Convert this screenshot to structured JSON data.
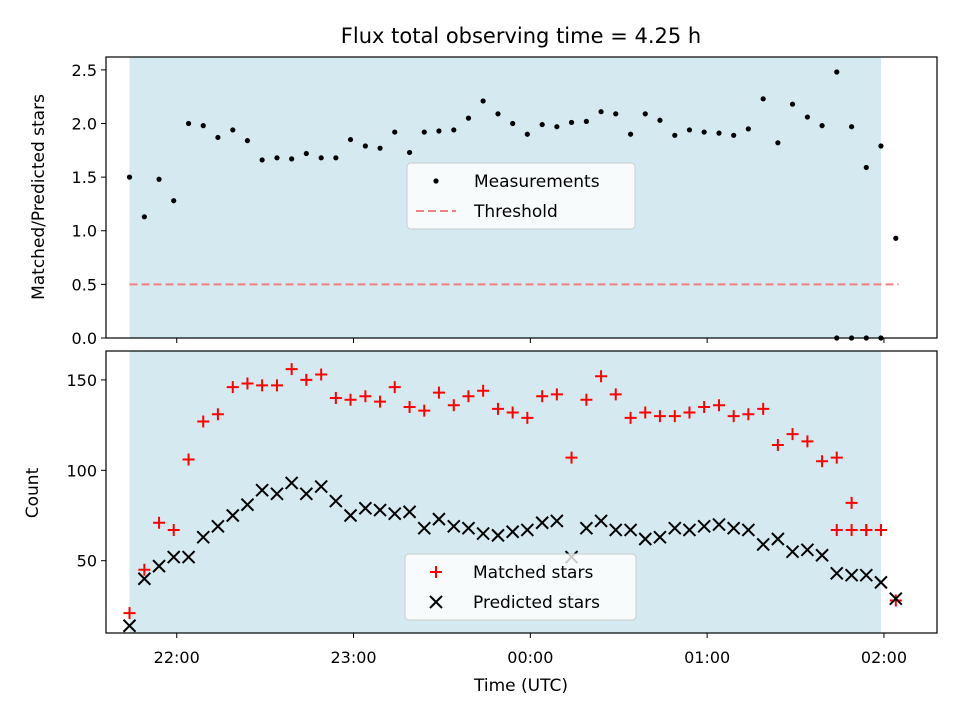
{
  "chart_data": {
    "title": "Flux total observing time = 4.25 h",
    "xlabel": "Time (UTC)",
    "x_ticks": [
      "22:00",
      "23:00",
      "00:00",
      "01:00",
      "02:00"
    ],
    "x_tick_hours": [
      22.0,
      23.0,
      24.0,
      25.0,
      26.0
    ],
    "xlim_hours": [
      21.6,
      26.3
    ],
    "observing_window_hours": [
      21.733,
      25.983
    ],
    "observing_window_color": "#d4eaf0",
    "panels": [
      {
        "type": "scatter",
        "ylabel": "Matched/Predicted stars",
        "ylim": [
          0,
          2.62
        ],
        "y_ticks": [
          "0.0",
          "0.5",
          "1.0",
          "1.5",
          "2.0",
          "2.5"
        ],
        "y_tick_values": [
          0,
          0.5,
          1.0,
          1.5,
          2.0,
          2.5
        ],
        "legend": [
          "Measurements",
          "Threshold"
        ],
        "threshold": {
          "value": 0.5,
          "x_hours": [
            21.733,
            26.083
          ],
          "color": "#f08080"
        },
        "series": [
          {
            "name": "Measurements",
            "color": "#000000",
            "x_hours": [
              21.733,
              21.817,
              21.9,
              21.983,
              22.067,
              22.15,
              22.233,
              22.317,
              22.4,
              22.483,
              22.567,
              22.65,
              22.733,
              22.817,
              22.9,
              22.983,
              23.067,
              23.15,
              23.233,
              23.317,
              23.4,
              23.483,
              23.567,
              23.65,
              23.733,
              23.817,
              23.9,
              23.983,
              24.067,
              24.15,
              24.233,
              24.317,
              24.4,
              24.483,
              24.567,
              24.65,
              24.733,
              24.817,
              24.9,
              24.983,
              25.067,
              25.15,
              25.233,
              25.317,
              25.4,
              25.483,
              25.567,
              25.65,
              25.733,
              25.817,
              25.9,
              25.983,
              26.067
            ],
            "values": [
              1.5,
              1.13,
              1.48,
              1.28,
              2.0,
              1.98,
              1.87,
              1.94,
              1.84,
              1.66,
              1.68,
              1.67,
              1.72,
              1.68,
              1.68,
              1.85,
              1.79,
              1.77,
              1.92,
              1.73,
              1.92,
              1.93,
              1.94,
              2.05,
              2.21,
              2.09,
              2.0,
              1.9,
              1.99,
              1.97,
              2.01,
              2.02,
              2.11,
              2.09,
              1.9,
              2.09,
              2.03,
              1.89,
              1.94,
              1.92,
              1.91,
              1.89,
              1.95,
              2.23,
              1.82,
              2.18,
              2.06,
              1.98,
              2.48,
              1.97,
              1.59,
              1.79,
              0.93
            ]
          },
          {
            "name": "",
            "color": "#000000",
            "x_hours": [
              25.733,
              25.817,
              25.9,
              25.983
            ],
            "values": [
              0,
              0,
              0,
              0
            ]
          }
        ]
      },
      {
        "type": "scatter",
        "ylabel": "Count",
        "ylim": [
          10,
          166
        ],
        "y_ticks": [
          "50",
          "100",
          "150"
        ],
        "y_tick_values": [
          50,
          100,
          150
        ],
        "legend": [
          "Matched stars",
          "Predicted stars"
        ],
        "series": [
          {
            "name": "Matched stars",
            "color": "#ff0000",
            "marker": "+",
            "x_hours": [
              21.733,
              21.817,
              21.9,
              21.983,
              22.067,
              22.15,
              22.233,
              22.317,
              22.4,
              22.483,
              22.567,
              22.65,
              22.733,
              22.817,
              22.9,
              22.983,
              23.067,
              23.15,
              23.233,
              23.317,
              23.4,
              23.483,
              23.567,
              23.65,
              23.733,
              23.817,
              23.9,
              23.983,
              24.067,
              24.15,
              24.233,
              24.317,
              24.4,
              24.483,
              24.567,
              24.65,
              24.733,
              24.817,
              24.9,
              24.983,
              25.067,
              25.15,
              25.233,
              25.317,
              25.4,
              25.483,
              25.567,
              25.65,
              25.733,
              25.817,
              25.9,
              25.983,
              26.067
            ],
            "values": [
              21,
              45,
              71,
              67,
              106,
              127,
              131,
              146,
              148,
              147,
              147,
              156,
              150,
              153,
              140,
              139,
              141,
              138,
              146,
              135,
              133,
              143,
              136,
              141,
              144,
              134,
              132,
              129,
              141,
              142,
              107,
              139,
              152,
              142,
              129,
              132,
              130,
              130,
              132,
              135,
              136,
              130,
              131,
              134,
              114,
              120,
              116,
              105,
              107,
              82,
              67,
              67,
              28
            ]
          },
          {
            "name": "",
            "color": "#ff0000",
            "marker": "+",
            "x_hours": [
              25.733,
              25.817,
              25.9,
              25.983
            ],
            "values": [
              67,
              67,
              67,
              67
            ]
          },
          {
            "name": "Predicted stars",
            "color": "#000000",
            "marker": "x",
            "x_hours": [
              21.733,
              21.817,
              21.9,
              21.983,
              22.067,
              22.15,
              22.233,
              22.317,
              22.4,
              22.483,
              22.567,
              22.65,
              22.733,
              22.817,
              22.9,
              22.983,
              23.067,
              23.15,
              23.233,
              23.317,
              23.4,
              23.483,
              23.567,
              23.65,
              23.733,
              23.817,
              23.9,
              23.983,
              24.067,
              24.15,
              24.233,
              24.317,
              24.4,
              24.483,
              24.567,
              24.65,
              24.733,
              24.817,
              24.9,
              24.983,
              25.067,
              25.15,
              25.233,
              25.317,
              25.4,
              25.483,
              25.567,
              25.65,
              25.733,
              25.817,
              25.9,
              25.983,
              26.067
            ],
            "values": [
              14,
              40,
              47,
              52,
              52,
              63,
              69,
              75,
              81,
              89,
              87,
              93,
              87,
              91,
              83,
              75,
              79,
              78,
              76,
              77,
              68,
              73,
              69,
              68,
              65,
              64,
              66,
              67,
              71,
              72,
              52,
              68,
              72,
              67,
              67,
              62,
              63,
              68,
              67,
              69,
              70,
              68,
              67,
              59,
              62,
              55,
              56,
              53,
              43,
              42,
              42,
              38,
              29
            ]
          }
        ]
      }
    ]
  }
}
